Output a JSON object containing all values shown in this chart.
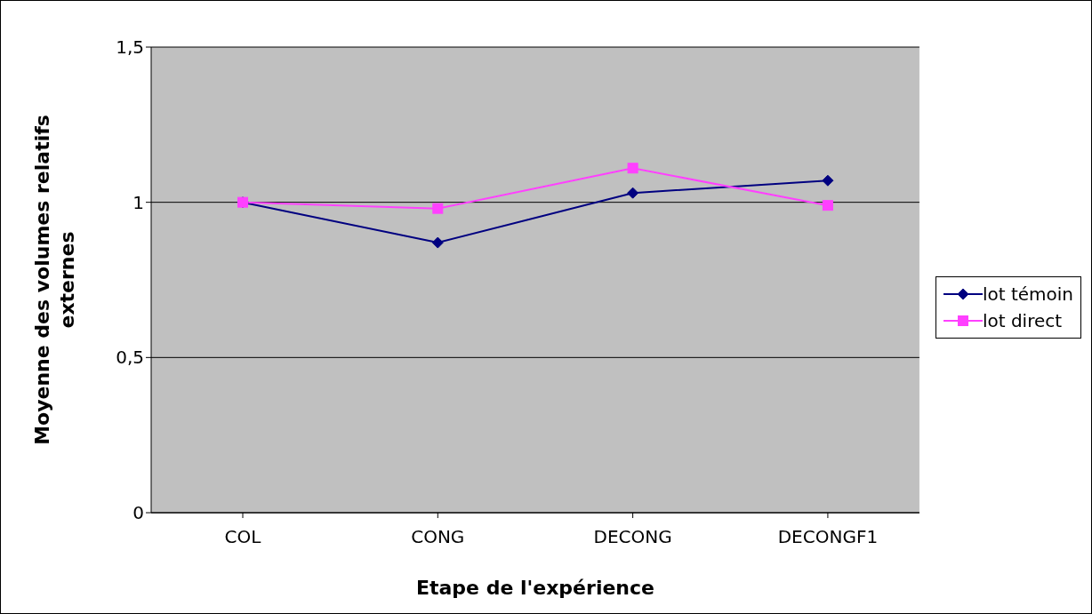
{
  "chart_data": {
    "type": "line",
    "xlabel": "Etape de l'expérience",
    "ylabel": "Moyenne des volumes relatifs externes",
    "categories": [
      "COL",
      "CONG",
      "DECONG",
      "DECONGF1"
    ],
    "series": [
      {
        "name": "lot témoin",
        "color": "#000080",
        "marker": "diamond",
        "values": [
          1.0,
          0.87,
          1.03,
          1.07
        ]
      },
      {
        "name": "lot direct",
        "color": "#ff40ff",
        "marker": "square",
        "values": [
          1.0,
          0.98,
          1.11,
          0.99
        ]
      }
    ],
    "ylim": [
      0,
      1.5
    ],
    "yticks": [
      0,
      {
        "value": 0.5,
        "label": "0,5"
      },
      1,
      {
        "value": 1.5,
        "label": "1,5"
      }
    ],
    "grid": "y",
    "legend": "right"
  }
}
